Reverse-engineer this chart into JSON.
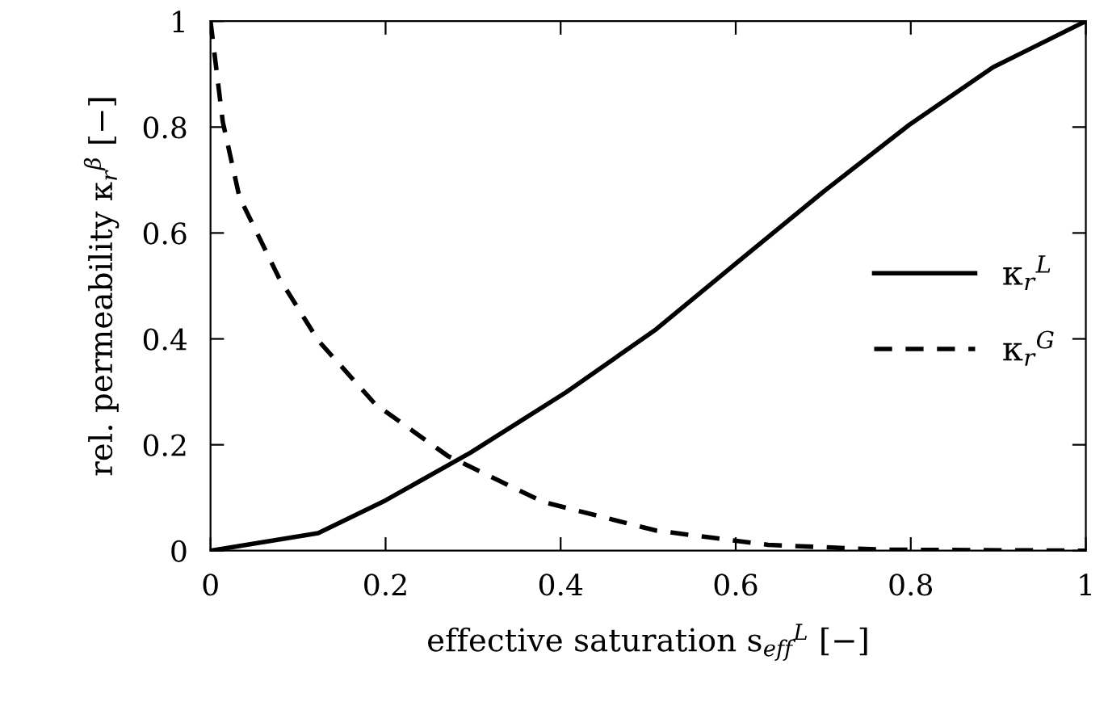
{
  "chart_data": {
    "type": "line",
    "xlabel": "effective saturation s$_{eff}$$^{L}$ [−]",
    "ylabel": "rel. permeability κ$_{r}$$^{β}$ [−]",
    "xlim": [
      0,
      1
    ],
    "ylim": [
      0,
      1
    ],
    "xticks": [
      0,
      0.2,
      0.4,
      0.6,
      0.8,
      1
    ],
    "yticks": [
      0,
      0.2,
      0.4,
      0.6,
      0.8,
      1
    ],
    "grid": false,
    "legend": "right",
    "marker": "none",
    "series": [
      {
        "name": "κ$_{r}$$^{L}$",
        "color": "#000000",
        "line_style": "solid",
        "x": [
          0,
          0.123,
          0.2,
          0.297,
          0.406,
          0.509,
          0.605,
          0.701,
          0.798,
          0.894,
          1
        ],
        "values": [
          0,
          0.033,
          0.095,
          0.185,
          0.299,
          0.418,
          0.549,
          0.679,
          0.804,
          0.913,
          1
        ]
      },
      {
        "name": "κ$_{r}$$^{G}$",
        "color": "#000000",
        "line_style": "dashed",
        "x": [
          0,
          0.014,
          0.033,
          0.078,
          0.123,
          0.188,
          0.271,
          0.38,
          0.509,
          0.637,
          0.766,
          1
        ],
        "values": [
          1,
          0.81,
          0.668,
          0.516,
          0.397,
          0.277,
          0.179,
          0.092,
          0.038,
          0.011,
          0.002,
          0
        ]
      }
    ]
  }
}
